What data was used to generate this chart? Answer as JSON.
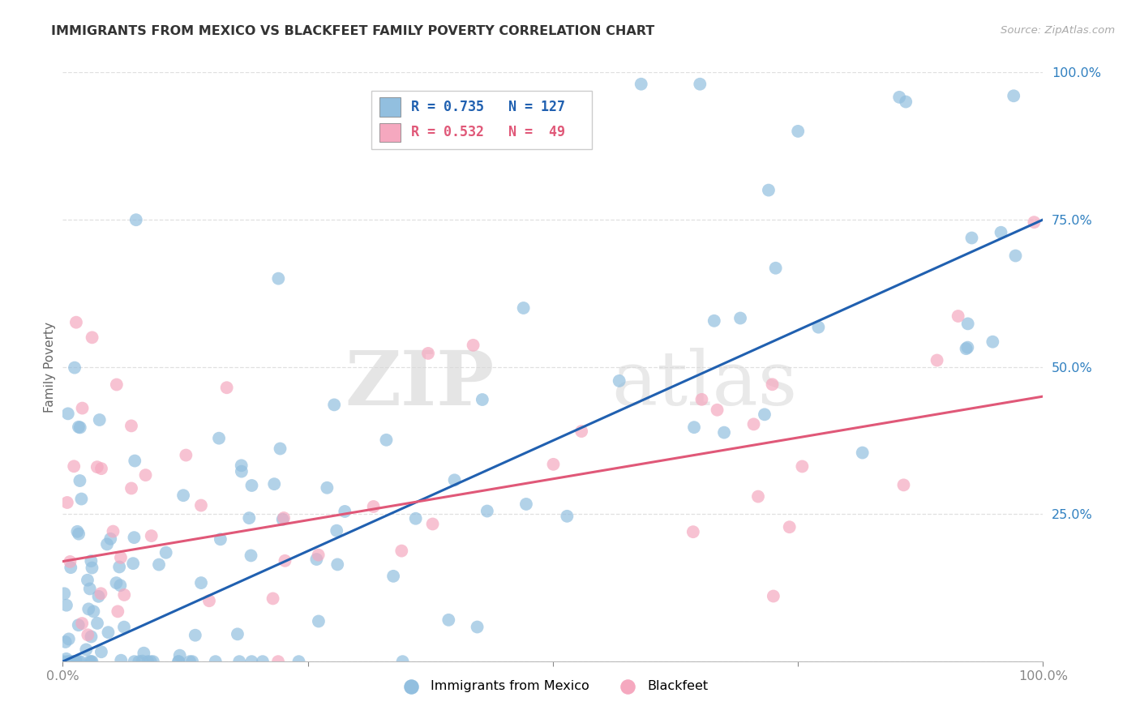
{
  "title": "IMMIGRANTS FROM MEXICO VS BLACKFEET FAMILY POVERTY CORRELATION CHART",
  "source": "Source: ZipAtlas.com",
  "ylabel": "Family Poverty",
  "legend_blue_r": "R = 0.735",
  "legend_blue_n": "N = 127",
  "legend_pink_r": "R = 0.532",
  "legend_pink_n": "N =  49",
  "legend_blue_label": "Immigrants from Mexico",
  "legend_pink_label": "Blackfeet",
  "watermark_zip": "ZIP",
  "watermark_atlas": "atlas",
  "blue_scatter_color": "#92bfdf",
  "pink_scatter_color": "#f5a8bf",
  "blue_line_color": "#2060b0",
  "pink_line_color": "#e05878",
  "blue_line_x0": 0,
  "blue_line_y0": 0,
  "blue_line_x1": 100,
  "blue_line_y1": 75,
  "pink_line_x0": 0,
  "pink_line_y0": 17,
  "pink_line_x1": 100,
  "pink_line_y1": 45,
  "xlim": [
    0,
    100
  ],
  "ylim": [
    0,
    100
  ],
  "xtick_positions": [
    0,
    25,
    50,
    75,
    100
  ],
  "xtick_labels": [
    "0.0%",
    "",
    "",
    "",
    "100.0%"
  ],
  "ytick_positions": [
    0,
    25,
    50,
    75,
    100
  ],
  "ytick_labels": [
    "",
    "25.0%",
    "50.0%",
    "75.0%",
    "100.0%"
  ],
  "background_color": "#ffffff",
  "grid_color": "#e0e0e0"
}
